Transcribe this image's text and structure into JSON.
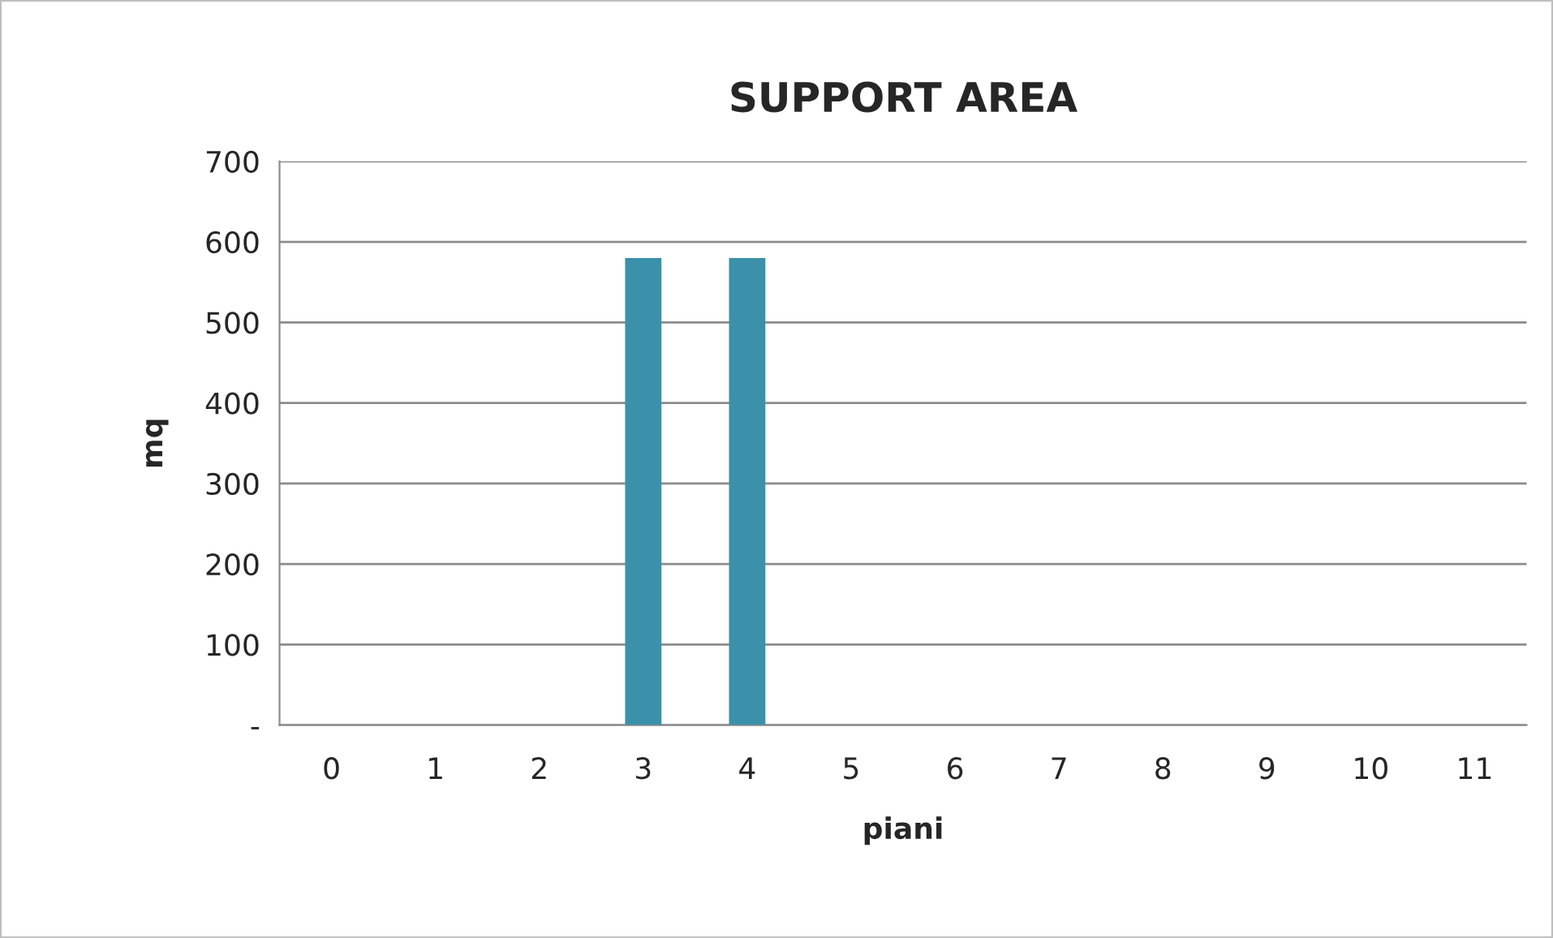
{
  "chart_data": {
    "type": "bar",
    "title": "SUPPORT AREA",
    "xlabel": "piani",
    "ylabel": "mq",
    "categories": [
      "0",
      "1",
      "2",
      "3",
      "4",
      "5",
      "6",
      "7",
      "8",
      "9",
      "10",
      "11"
    ],
    "values": [
      0,
      0,
      0,
      580,
      580,
      0,
      0,
      0,
      0,
      0,
      0,
      0
    ],
    "color": "#3a91a9",
    "ylim": [
      0,
      700
    ],
    "yticks": [
      {
        "value": 0,
        "label": "-"
      },
      100,
      200,
      300,
      400,
      500,
      600,
      700
    ],
    "grid": "y"
  }
}
